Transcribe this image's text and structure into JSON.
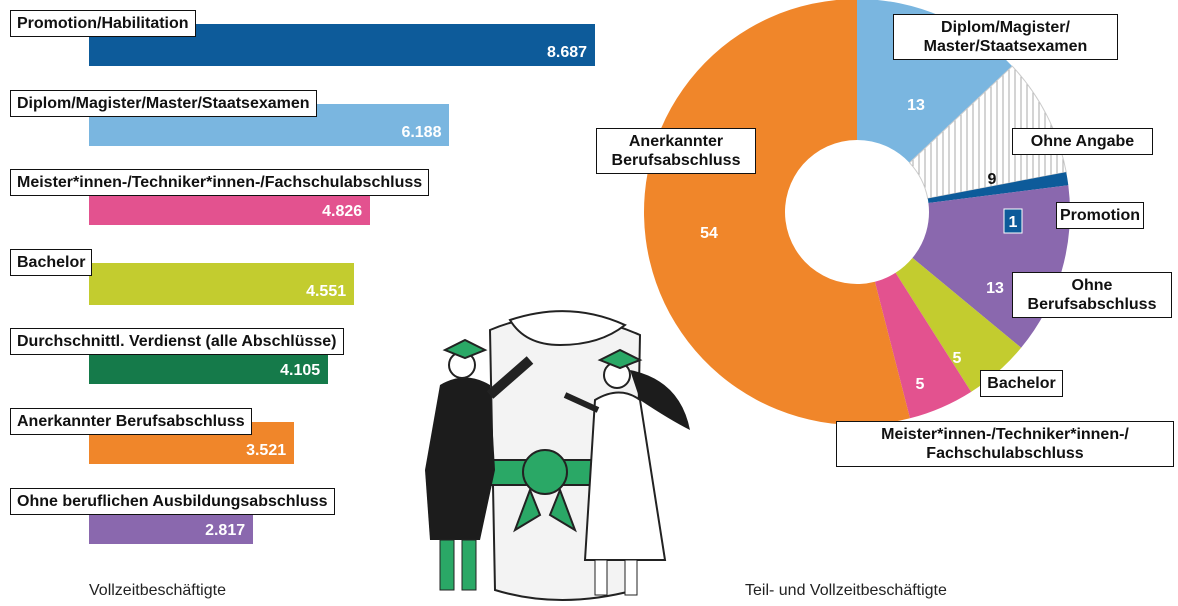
{
  "chart_data": [
    {
      "type": "bar",
      "categories": [
        "Promotion/Habilitation",
        "Diplom/Magister/Master/Staatsexamen",
        "Meister*innen-/Techniker*innen-/Fachschulabschluss",
        "Bachelor",
        "Durchschnittl. Verdienst (alle Abschlüsse)",
        "Anerkannter Berufsabschluss",
        "Ohne beruflichen Ausbildungsabschluss"
      ],
      "values": [
        8687,
        6188,
        4826,
        4551,
        4105,
        3521,
        2817
      ],
      "value_labels": [
        "8.687",
        "6.188",
        "4.826",
        "4.551",
        "4.105",
        "3.521",
        "2.817"
      ],
      "colors": [
        "#0d5b9a",
        "#7ab6e0",
        "#e3528f",
        "#c3cc2f",
        "#157a4a",
        "#f0862a",
        "#8a68ae"
      ],
      "caption": "Vollzeitbeschäftigte"
    },
    {
      "type": "donut",
      "categories": [
        "Diplom/Magister/\nMaster/Staatsexamen",
        "Ohne Angabe",
        "Promotion",
        "Ohne\nBerufsabschluss",
        "Bachelor",
        "Meister*innen-/Techniker*innen-/\nFachschulabschluss",
        "Anerkannter\nBerufsabschluss"
      ],
      "values": [
        13,
        9,
        1,
        13,
        5,
        5,
        54
      ],
      "colors": [
        "#7ab6e0",
        "#ffffff",
        "#0d5b9a",
        "#8a68ae",
        "#c3cc2f",
        "#e3528f",
        "#f0862a"
      ],
      "hatched_segments": [
        1
      ],
      "caption": "Teil- und Vollzeitbeschäftigte"
    }
  ]
}
